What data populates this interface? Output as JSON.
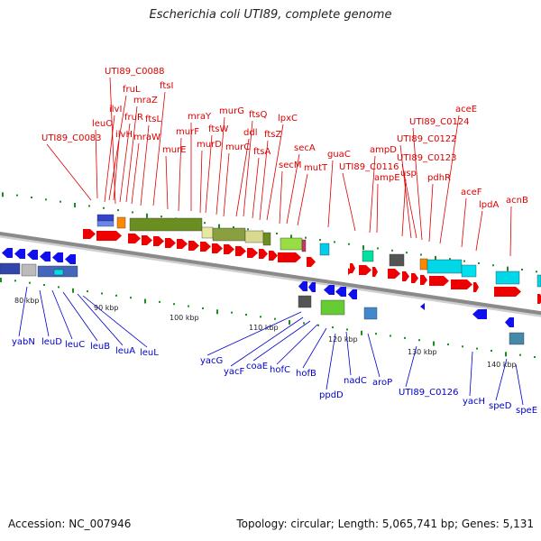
{
  "title": "Escherichia coli UTI89, complete genome",
  "footer": {
    "accession": "Accession: NC_007946",
    "topology": "Topology: circular; Length: 5,065,741 bp; Genes: 5,131"
  },
  "colors": {
    "forward_label": "#dd0000",
    "reverse_label": "#0000cc",
    "forward_arrow": "#ee0000",
    "reverse_arrow": "#1010ee",
    "backbone": "#8a8a8a",
    "tick": "#1f8a1f"
  },
  "ticks": [
    "80 kbp",
    "90 kbp",
    "100 kbp",
    "110 kbp",
    "120 kbp",
    "130 kbp",
    "140 kbp"
  ],
  "forward_genes": [
    "UTI89_C0083",
    "leuO",
    "ilvI",
    "fruL",
    "UTI89_C0088",
    "ilvH",
    "fruR",
    "mraZ",
    "mraW",
    "ftsL",
    "ftsI",
    "murE",
    "murF",
    "mraY",
    "murD",
    "ftsW",
    "murG",
    "murC",
    "ddl",
    "ftsQ",
    "ftsA",
    "ftsZ",
    "lpxC",
    "secM",
    "secA",
    "mutT",
    "guaC",
    "UTI89_C0116",
    "ampD",
    "ampE",
    "usp",
    "UTI89_C0122",
    "UTI89_C0123",
    "UTI89_C0124",
    "pdhR",
    "aceE",
    "aceF",
    "lpdA",
    "acnB"
  ],
  "reverse_genes": [
    "yabN",
    "leuD",
    "leuC",
    "leuB",
    "leuA",
    "leuL",
    "yacG",
    "yacF",
    "coaE",
    "hofC",
    "hofB",
    "ppdD",
    "nadC",
    "aroP",
    "UTI89_C0126",
    "yacH",
    "speD",
    "speE"
  ]
}
